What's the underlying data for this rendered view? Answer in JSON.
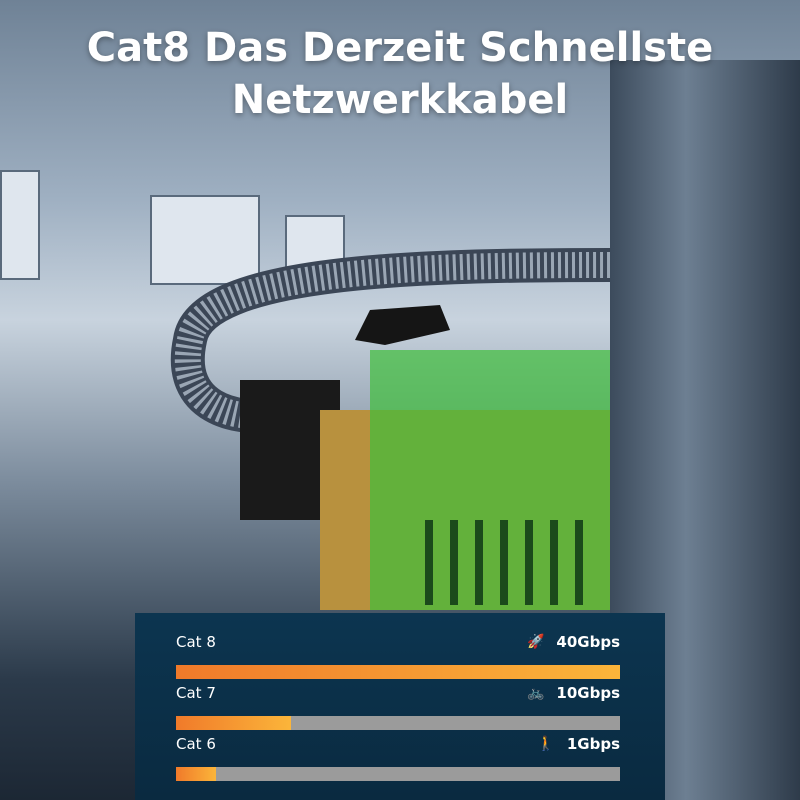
{
  "title_line1": "Cat8 Das Derzeit Schnellste",
  "title_line2": "Netzwerkkabel",
  "comparison": [
    {
      "label": "Cat 8",
      "speed": "40Gbps",
      "icon": "rocket-icon",
      "glyph": "🚀",
      "fill_percent": 100
    },
    {
      "label": "Cat 7",
      "speed": "10Gbps",
      "icon": "bicycle-icon",
      "glyph": "🚲",
      "fill_percent": 26
    },
    {
      "label": "Cat 6",
      "speed": "1Gbps",
      "icon": "walking-person-icon",
      "glyph": "🚶",
      "fill_percent": 9
    }
  ],
  "colors": {
    "bar_start": "#f07a2a",
    "bar_end": "#fbb53a",
    "track": "#9b9b9b",
    "panel": "#0c3550",
    "connector_green": "#3fbf3a",
    "connector_gold": "#b8913e"
  }
}
